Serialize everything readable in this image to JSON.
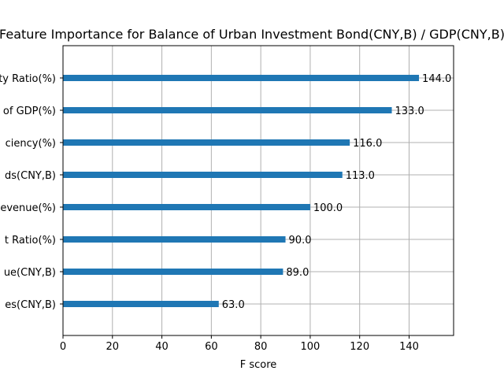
{
  "chart_data": {
    "type": "bar",
    "orientation": "horizontal",
    "title": "Feature Importance for Balance of Urban Investment Bond(CNY,B) / GDP(CNY,B)",
    "xlabel": "F score",
    "ylabel": "",
    "categories": [
      "ty Ratio(%)",
      "of GDP(%)",
      "ciency(%)",
      "ds(CNY,B)",
      "evenue(%)",
      "t Ratio(%)",
      "ue(CNY,B)",
      "es(CNY,B)"
    ],
    "values": [
      144.0,
      133.0,
      116.0,
      113.0,
      100.0,
      90.0,
      89.0,
      63.0
    ],
    "data_labels": [
      "144.0",
      "133.0",
      "116.0",
      "113.0",
      "100.0",
      "90.0",
      "89.0",
      "63.0"
    ],
    "xticks": [
      0,
      20,
      40,
      60,
      80,
      100,
      120,
      140
    ],
    "xtick_labels": [
      "0",
      "20",
      "40",
      "60",
      "80",
      "100",
      "120",
      "140"
    ],
    "xlim": [
      0,
      158
    ],
    "grid": true,
    "legend": "none",
    "bar_color": "#1f77b4",
    "grid_color": "#b0b0b0"
  }
}
